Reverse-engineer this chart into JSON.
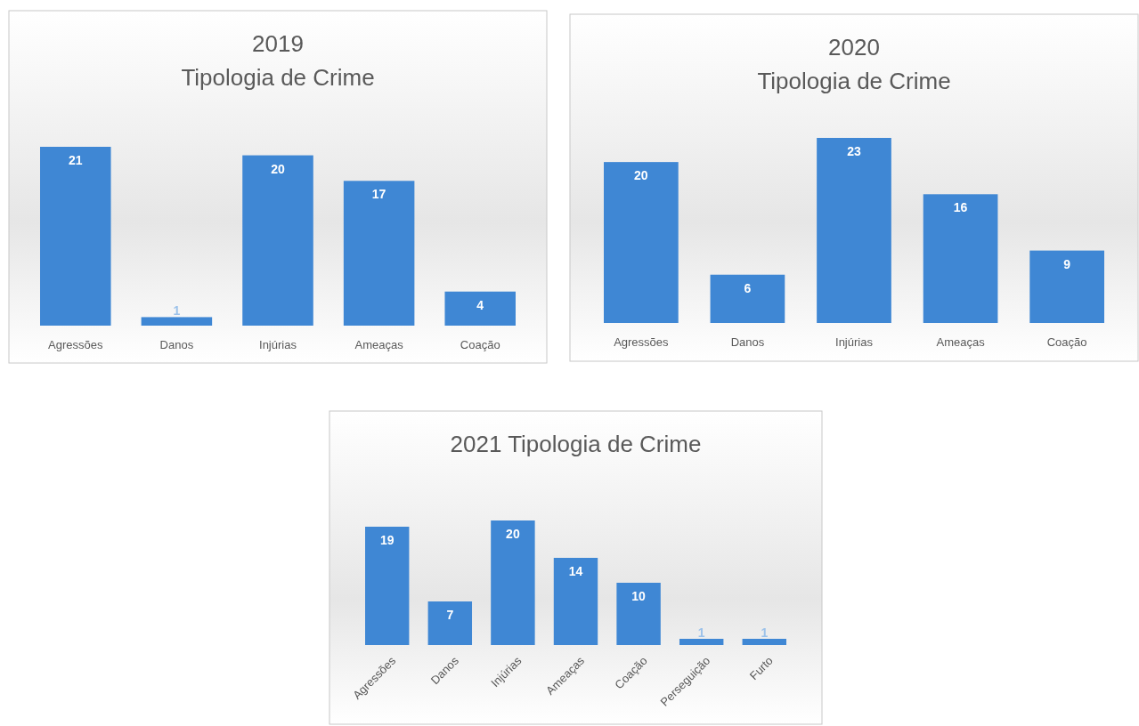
{
  "chart_data": [
    {
      "type": "bar",
      "title": "2019",
      "subtitle": "Tipologia de Crime",
      "categories": [
        "Agressões",
        "Danos",
        "Injúrias",
        "Ameaças",
        "Coação"
      ],
      "values": [
        21,
        1,
        20,
        17,
        4
      ],
      "color": "#3f87d4",
      "data_labels": true
    },
    {
      "type": "bar",
      "title": "2020",
      "subtitle": "Tipologia de Crime",
      "categories": [
        "Agressões",
        "Danos",
        "Injúrias",
        "Ameaças",
        "Coação"
      ],
      "values": [
        20,
        6,
        23,
        16,
        9
      ],
      "color": "#3f87d4",
      "data_labels": true
    },
    {
      "type": "bar",
      "title": "2021 Tipologia de Crime",
      "categories": [
        "Agressões",
        "Danos",
        "Injúrias",
        "Ameaças",
        "Coação",
        "Perseguição",
        "Furto"
      ],
      "values": [
        19,
        7,
        20,
        14,
        10,
        1,
        1
      ],
      "color": "#3f87d4",
      "data_labels": true
    }
  ]
}
